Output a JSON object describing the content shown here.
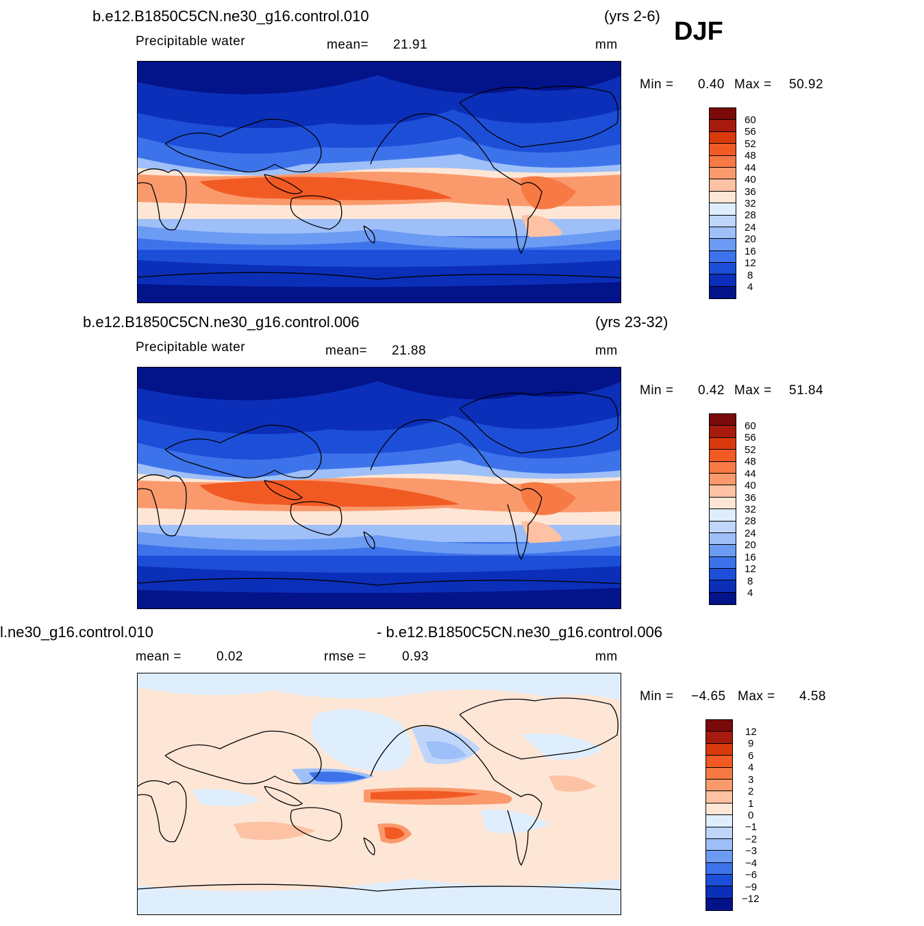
{
  "season": "DJF",
  "panels": [
    {
      "case": "b.e12.B1850C5CN.ne30_g16.control.010",
      "years": "(yrs 2-6)",
      "left_label": "Precipitable  water",
      "stat_label": "mean=",
      "stat_value": "21.91",
      "units": "mm",
      "min_label": "Min  =",
      "min_value": "0.40",
      "max_label": "Max  =",
      "max_value": "50.92",
      "levels": [
        "60",
        "56",
        "52",
        "48",
        "44",
        "40",
        "36",
        "32",
        "28",
        "24",
        "20",
        "16",
        "12",
        "8",
        "4"
      ]
    },
    {
      "case": "b.e12.B1850C5CN.ne30_g16.control.006",
      "years": "(yrs 23-32)",
      "left_label": "Precipitable  water",
      "stat_label": "mean=",
      "stat_value": "21.88",
      "units": "mm",
      "min_label": "Min  =",
      "min_value": "0.42",
      "max_label": "Max  =",
      "max_value": "51.84",
      "levels": [
        "60",
        "56",
        "52",
        "48",
        "44",
        "40",
        "36",
        "32",
        "28",
        "24",
        "20",
        "16",
        "12",
        "8",
        "4"
      ]
    },
    {
      "case_left": "l.ne30_g16.control.010",
      "case_right": "- b.e12.B1850C5CN.ne30_g16.control.006",
      "mean_label": "mean  =",
      "mean_value": "0.02",
      "rmse_label": "rmse  =",
      "rmse_value": "0.93",
      "units": "mm",
      "min_label": "Min  =",
      "min_value": "−4.65",
      "max_label": "Max  =",
      "max_value": "4.58",
      "levels": [
        "12",
        "9",
        "6",
        "4",
        "3",
        "2",
        "1",
        "0",
        "−1",
        "−2",
        "−3",
        "−4",
        "−6",
        "−9",
        "−12"
      ]
    }
  ],
  "colors": {
    "full_scale": [
      "#7b0a0a",
      "#a61b0e",
      "#d93a0c",
      "#f25a24",
      "#f77a45",
      "#fa9a6c",
      "#fcc2a3",
      "#fde6d6",
      "#dfeefd",
      "#bfd6fa",
      "#9ebff8",
      "#6c9bf3",
      "#3d73ea",
      "#1d4ed8",
      "#0b2fb8",
      "#03138a"
    ],
    "diff_scale": [
      "#7b0a0a",
      "#a61b0e",
      "#d93a0c",
      "#f25a24",
      "#f77a45",
      "#fa9a6c",
      "#fcc2a3",
      "#fde6d6",
      "#dfeefd",
      "#bfd6fa",
      "#9ebff8",
      "#6c9bf3",
      "#3d73ea",
      "#1d4ed8",
      "#0b2fb8",
      "#03138a"
    ]
  }
}
